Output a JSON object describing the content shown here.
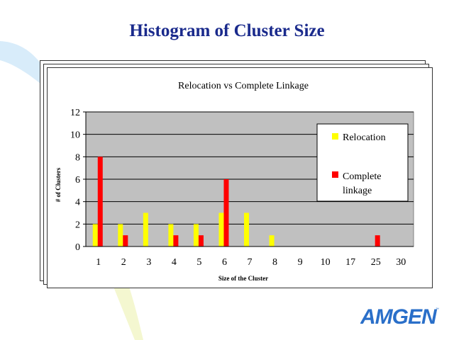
{
  "slide": {
    "title": "Histogram of Cluster Size"
  },
  "logo": {
    "text": "AMGEN"
  },
  "colors": {
    "title": "#1a2a8c",
    "relocation": "#ffff00",
    "complete": "#ff0000",
    "plot_bg": "#c0c0c0",
    "logo": "#2a6fc9"
  },
  "chart_data": {
    "type": "bar",
    "title": "Relocation vs Complete Linkage",
    "xlabel": "Size of the Cluster",
    "ylabel": "# of Clusters",
    "categories": [
      "1",
      "2",
      "3",
      "4",
      "5",
      "6",
      "7",
      "8",
      "9",
      "10",
      "17",
      "25",
      "30"
    ],
    "series": [
      {
        "name": "Relocation",
        "color": "#ffff00",
        "values": [
          2,
          2,
          3,
          2,
          2,
          3,
          3,
          1,
          0,
          0,
          0,
          0,
          0
        ]
      },
      {
        "name": "Complete linkage",
        "color": "#ff0000",
        "values": [
          8,
          1,
          0,
          1,
          1,
          6,
          0,
          0,
          0,
          0,
          0,
          1,
          0
        ]
      }
    ],
    "ylim": [
      0,
      12
    ],
    "yticks": [
      0,
      2,
      4,
      6,
      8,
      10,
      12
    ],
    "grid": true,
    "legend_position": "top-right"
  }
}
